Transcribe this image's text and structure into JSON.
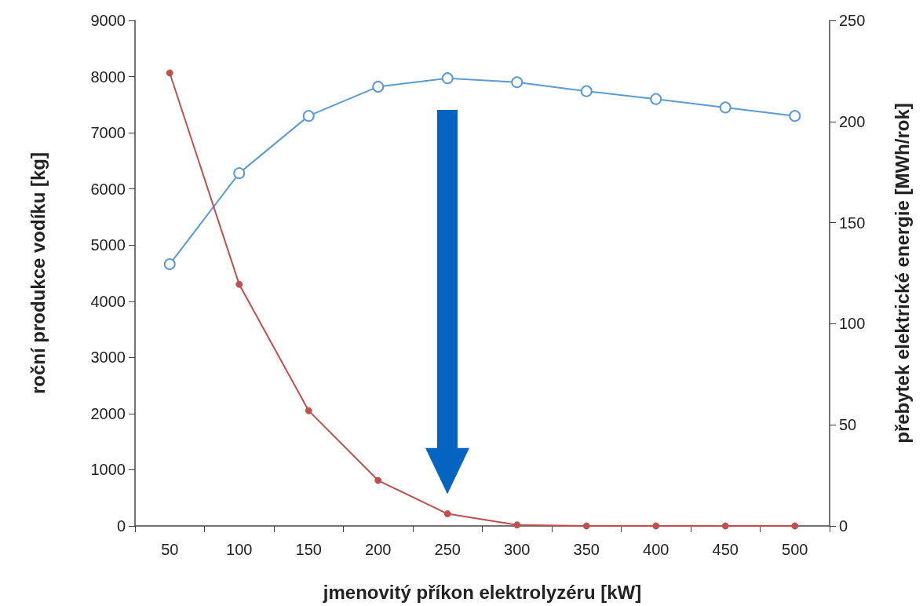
{
  "chart_data": {
    "type": "line",
    "xlabel": "jmenovitý příkon elektrolyzéru [kW]",
    "ylabel": "roční produkce vodíku [kg]",
    "y2label": "přebytek elektrické energie [MWh/rok]",
    "categories": [
      "50",
      "100",
      "150",
      "200",
      "250",
      "300",
      "350",
      "400",
      "450",
      "500"
    ],
    "series": [
      {
        "color": "#5b9bd5",
        "marker": "circle",
        "values": [
          4660,
          6280,
          7300,
          7820,
          7970,
          7900,
          7740,
          7600,
          7450,
          7300
        ]
      },
      {
        "color": "#c0504d",
        "marker": "circle",
        "axis": "y2",
        "values": [
          224,
          119.5,
          57,
          22.5,
          6,
          0.5,
          0,
          0,
          0,
          0
        ]
      }
    ],
    "ylim": [
      0,
      9000
    ],
    "yticks": [
      0,
      1000,
      2000,
      3000,
      4000,
      5000,
      6000,
      7000,
      8000,
      9000
    ],
    "y2lim": [
      0,
      250
    ],
    "y2ticks": [
      0,
      50,
      100,
      150,
      200,
      250
    ],
    "grid": false,
    "line_style": "solid"
  }
}
